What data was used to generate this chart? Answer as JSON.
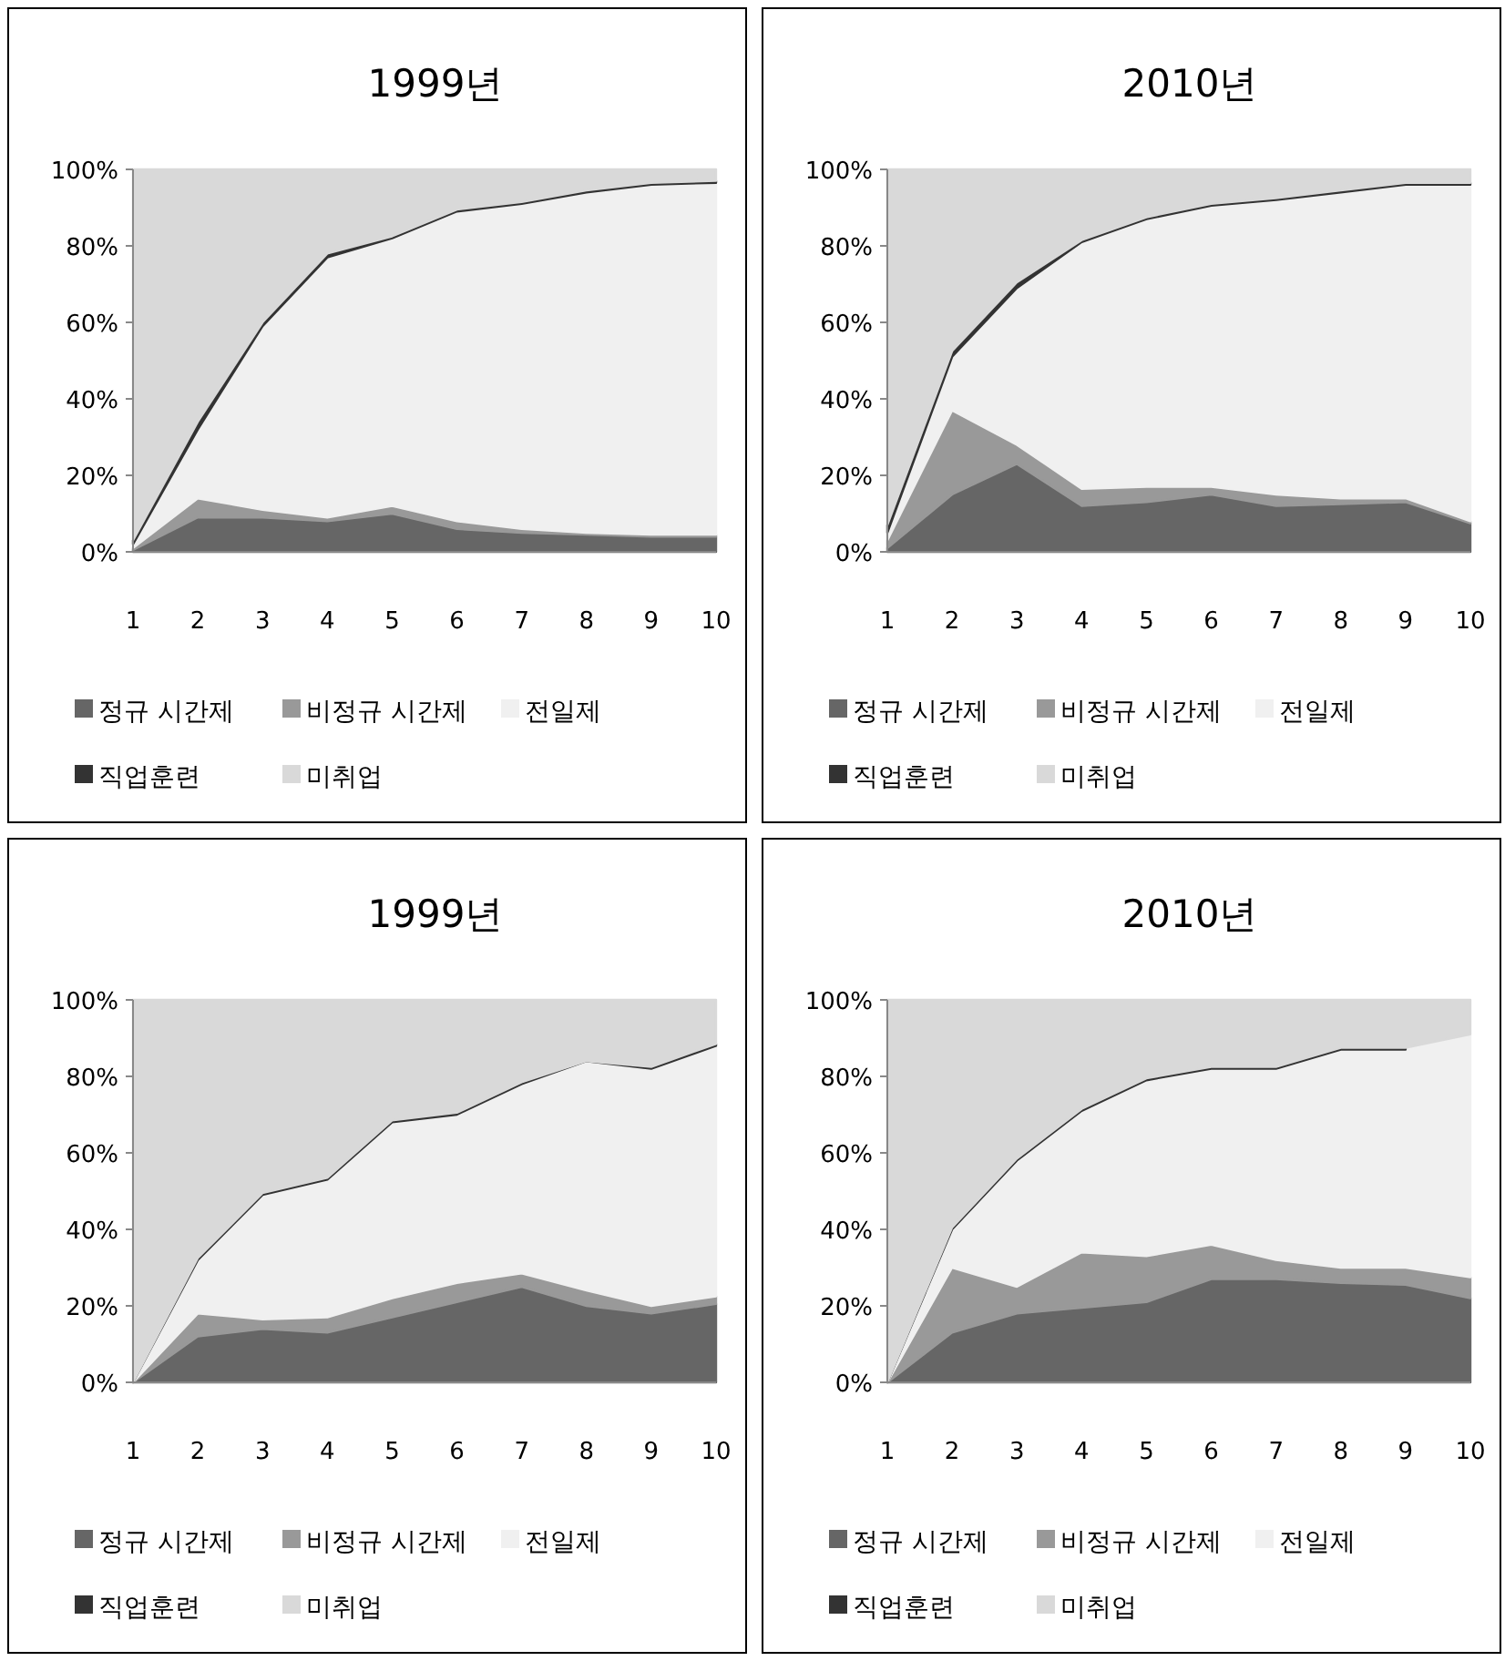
{
  "chart_data": [
    {
      "type": "area",
      "stacked": true,
      "title": "1999년",
      "categories": [
        "1",
        "2",
        "3",
        "4",
        "5",
        "6",
        "7",
        "8",
        "9",
        "10"
      ],
      "ylim": [
        0,
        100
      ],
      "yticks": [
        {
          "value": 0,
          "label": "0%"
        },
        {
          "value": 20,
          "label": "20%"
        },
        {
          "value": 40,
          "label": "40%"
        },
        {
          "value": 60,
          "label": "60%"
        },
        {
          "value": 80,
          "label": "80%"
        },
        {
          "value": 100,
          "label": "100%"
        }
      ],
      "legend": "bottom",
      "series": [
        {
          "name": "정규 시간제",
          "color": "#666666",
          "values": [
            0.5,
            9,
            9,
            8,
            10,
            6,
            5,
            4.5,
            4,
            4
          ]
        },
        {
          "name": "비정규 시간제",
          "color": "#999999",
          "values": [
            0.5,
            5,
            2,
            1,
            2,
            2,
            1,
            0.5,
            0.5,
            0.5
          ]
        },
        {
          "name": "전일제",
          "color": "#f0f0f0",
          "values": [
            1,
            18,
            48,
            68,
            70,
            81,
            85,
            89,
            91.5,
            92
          ]
        },
        {
          "name": "직업훈련",
          "color": "#333333",
          "values": [
            1,
            2,
            1,
            1,
            0.5,
            0.5,
            0.5,
            0.5,
            0.5,
            0.5
          ]
        },
        {
          "name": "미취업",
          "color": "#d9d9d9",
          "values": [
            97,
            66,
            40,
            22,
            17.5,
            10.5,
            8.5,
            5.5,
            3.5,
            3
          ]
        }
      ]
    },
    {
      "type": "area",
      "stacked": true,
      "title": "2010년",
      "categories": [
        "1",
        "2",
        "3",
        "4",
        "5",
        "6",
        "7",
        "8",
        "9",
        "10"
      ],
      "ylim": [
        0,
        100
      ],
      "yticks": [
        {
          "value": 0,
          "label": "0%"
        },
        {
          "value": 20,
          "label": "20%"
        },
        {
          "value": 40,
          "label": "40%"
        },
        {
          "value": 60,
          "label": "60%"
        },
        {
          "value": 80,
          "label": "80%"
        },
        {
          "value": 100,
          "label": "100%"
        }
      ],
      "legend": "bottom",
      "series": [
        {
          "name": "정규 시간제",
          "color": "#666666",
          "values": [
            1,
            15,
            23,
            12,
            13,
            15,
            12,
            12.5,
            13,
            7.5
          ]
        },
        {
          "name": "비정규 시간제",
          "color": "#999999",
          "values": [
            2,
            22,
            5,
            4.5,
            4,
            2,
            3,
            1.5,
            1,
            0.5
          ]
        },
        {
          "name": "전일제",
          "color": "#f0f0f0",
          "values": [
            2,
            14,
            41,
            64.5,
            70,
            73.5,
            77,
            80,
            82,
            88
          ]
        },
        {
          "name": "직업훈련",
          "color": "#333333",
          "values": [
            2,
            1.5,
            1.5,
            0.5,
            0.5,
            0.5,
            0.5,
            0.5,
            0.5,
            0.5
          ]
        },
        {
          "name": "미취업",
          "color": "#d9d9d9",
          "values": [
            93,
            47.5,
            29.5,
            18.5,
            12.5,
            9,
            7.5,
            5.5,
            3.5,
            3.5
          ]
        }
      ]
    },
    {
      "type": "area",
      "stacked": true,
      "title": "1999년",
      "categories": [
        "1",
        "2",
        "3",
        "4",
        "5",
        "6",
        "7",
        "8",
        "9",
        "10"
      ],
      "ylim": [
        0,
        100
      ],
      "yticks": [
        {
          "value": 0,
          "label": "0%"
        },
        {
          "value": 20,
          "label": "20%"
        },
        {
          "value": 40,
          "label": "40%"
        },
        {
          "value": 60,
          "label": "60%"
        },
        {
          "value": 80,
          "label": "80%"
        },
        {
          "value": 100,
          "label": "100%"
        }
      ],
      "legend": "bottom",
      "series": [
        {
          "name": "정규 시간제",
          "color": "#666666",
          "values": [
            0,
            12,
            14,
            13,
            17,
            21,
            25,
            20,
            18,
            20.5
          ]
        },
        {
          "name": "비정규 시간제",
          "color": "#999999",
          "values": [
            0,
            6,
            2.5,
            4,
            5,
            5,
            3.5,
            4,
            2,
            2
          ]
        },
        {
          "name": "전일제",
          "color": "#f0f0f0",
          "values": [
            0,
            14,
            32.5,
            36,
            46,
            44,
            49.5,
            60,
            62,
            65.5
          ]
        },
        {
          "name": "직업훈련",
          "color": "#333333",
          "values": [
            0,
            0.5,
            0.5,
            0.5,
            0.5,
            0.5,
            0.5,
            0,
            0.5,
            0.5
          ]
        },
        {
          "name": "미취업",
          "color": "#d9d9d9",
          "values": [
            100,
            67.5,
            50.5,
            46.5,
            31.5,
            29.5,
            21.5,
            16,
            17.5,
            11.5
          ]
        }
      ]
    },
    {
      "type": "area",
      "stacked": true,
      "title": "2010년",
      "categories": [
        "1",
        "2",
        "3",
        "4",
        "5",
        "6",
        "7",
        "8",
        "9",
        "10"
      ],
      "ylim": [
        0,
        100
      ],
      "yticks": [
        {
          "value": 0,
          "label": "0%"
        },
        {
          "value": 20,
          "label": "20%"
        },
        {
          "value": 40,
          "label": "40%"
        },
        {
          "value": 60,
          "label": "60%"
        },
        {
          "value": 80,
          "label": "80%"
        },
        {
          "value": 100,
          "label": "100%"
        }
      ],
      "legend": "bottom",
      "series": [
        {
          "name": "정규 시간제",
          "color": "#666666",
          "values": [
            0,
            13,
            18,
            19.5,
            21,
            27,
            27,
            26,
            25.5,
            22
          ]
        },
        {
          "name": "비정규 시간제",
          "color": "#999999",
          "values": [
            0,
            17,
            7,
            14.5,
            12,
            9,
            5,
            4,
            4.5,
            5.5
          ]
        },
        {
          "name": "전일제",
          "color": "#f0f0f0",
          "values": [
            0,
            10,
            33,
            37,
            46,
            46,
            50,
            57,
            57,
            63.5
          ]
        },
        {
          "name": "직업훈련",
          "color": "#333333",
          "values": [
            0,
            0.5,
            0.5,
            0.5,
            0.5,
            0.5,
            0.5,
            0.5,
            0.5,
            null
          ]
        },
        {
          "name": "미취업",
          "color": "#d9d9d9",
          "values": [
            100,
            59.5,
            41.5,
            28.5,
            20.5,
            17.5,
            17.5,
            12.5,
            12.5,
            9
          ]
        }
      ]
    }
  ]
}
